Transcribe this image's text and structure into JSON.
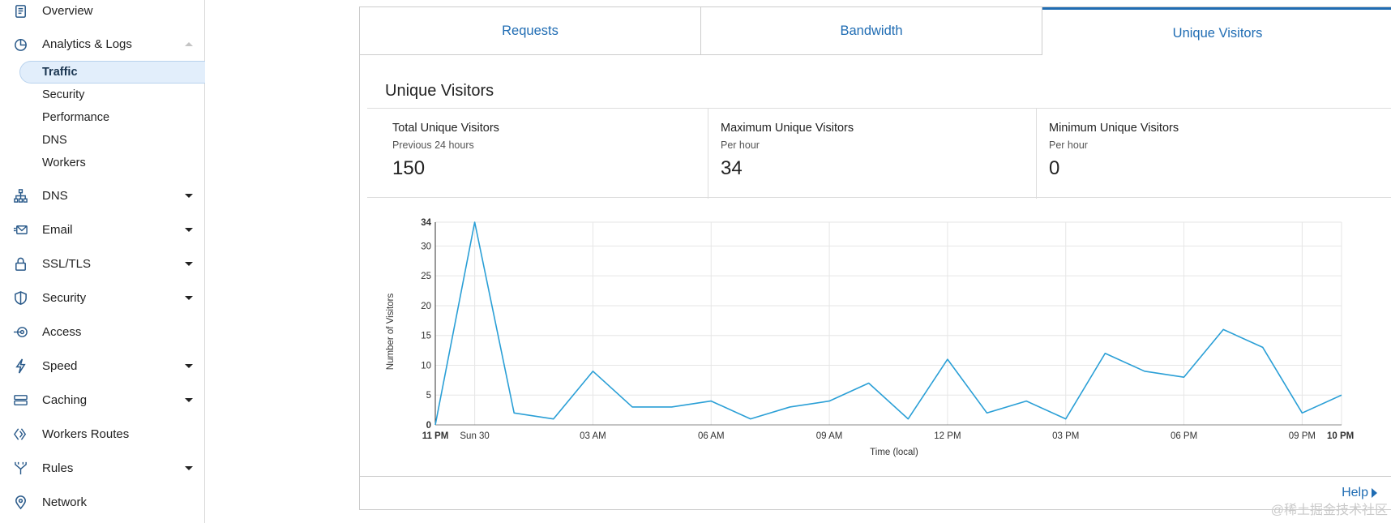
{
  "sidebar": {
    "overview": "Overview",
    "analytics": "Analytics & Logs",
    "sub_items": [
      "Traffic",
      "Security",
      "Performance",
      "DNS",
      "Workers"
    ],
    "items": [
      {
        "label": "DNS",
        "icon": "sitemap-icon",
        "caret": true
      },
      {
        "label": "Email",
        "icon": "email-icon",
        "caret": true
      },
      {
        "label": "SSL/TLS",
        "icon": "lock-icon",
        "caret": true
      },
      {
        "label": "Security",
        "icon": "shield-icon",
        "caret": true
      },
      {
        "label": "Access",
        "icon": "access-icon",
        "caret": false
      },
      {
        "label": "Speed",
        "icon": "bolt-icon",
        "caret": true
      },
      {
        "label": "Caching",
        "icon": "server-icon",
        "caret": true
      },
      {
        "label": "Workers Routes",
        "icon": "workers-icon",
        "caret": false
      },
      {
        "label": "Rules",
        "icon": "rules-icon",
        "caret": true
      },
      {
        "label": "Network",
        "icon": "location-pin-icon",
        "caret": false
      }
    ]
  },
  "tabs": [
    "Requests",
    "Bandwidth",
    "Unique Visitors"
  ],
  "section_title": "Unique Visitors",
  "metrics": [
    {
      "title": "Total Unique Visitors",
      "sub": "Previous 24 hours",
      "value": "150"
    },
    {
      "title": "Maximum Unique Visitors",
      "sub": "Per hour",
      "value": "34"
    },
    {
      "title": "Minimum Unique Visitors",
      "sub": "Per hour",
      "value": "0"
    }
  ],
  "help": "Help",
  "watermark": "@稀土掘金技术社区",
  "colors": {
    "accent": "#1f6cb3",
    "line": "#2a9fd6"
  },
  "chart_data": {
    "type": "line",
    "ylabel": "Number of Visitors",
    "xlabel": "Time (local)",
    "ylim": [
      0,
      34
    ],
    "y_ticks": [
      0,
      5,
      10,
      15,
      20,
      25,
      30,
      34
    ],
    "x_tick_labels": [
      {
        "label": "11 PM",
        "index": 0,
        "bold": true
      },
      {
        "label": "Sun 30",
        "index": 1,
        "bold": false
      },
      {
        "label": "03 AM",
        "index": 4,
        "bold": false
      },
      {
        "label": "06 AM",
        "index": 7,
        "bold": false
      },
      {
        "label": "09 AM",
        "index": 10,
        "bold": false
      },
      {
        "label": "12 PM",
        "index": 13,
        "bold": false
      },
      {
        "label": "03 PM",
        "index": 16,
        "bold": false
      },
      {
        "label": "06 PM",
        "index": 19,
        "bold": false
      },
      {
        "label": "09 PM",
        "index": 22,
        "bold": false
      },
      {
        "label": "10 PM",
        "index": 23,
        "bold": true
      }
    ],
    "grid": true,
    "series": [
      {
        "values": [
          0,
          34,
          2,
          1,
          9,
          3,
          3,
          4,
          1,
          3,
          4,
          7,
          1,
          11,
          2,
          4,
          1,
          12,
          9,
          8,
          16,
          13,
          2,
          5
        ]
      }
    ]
  }
}
